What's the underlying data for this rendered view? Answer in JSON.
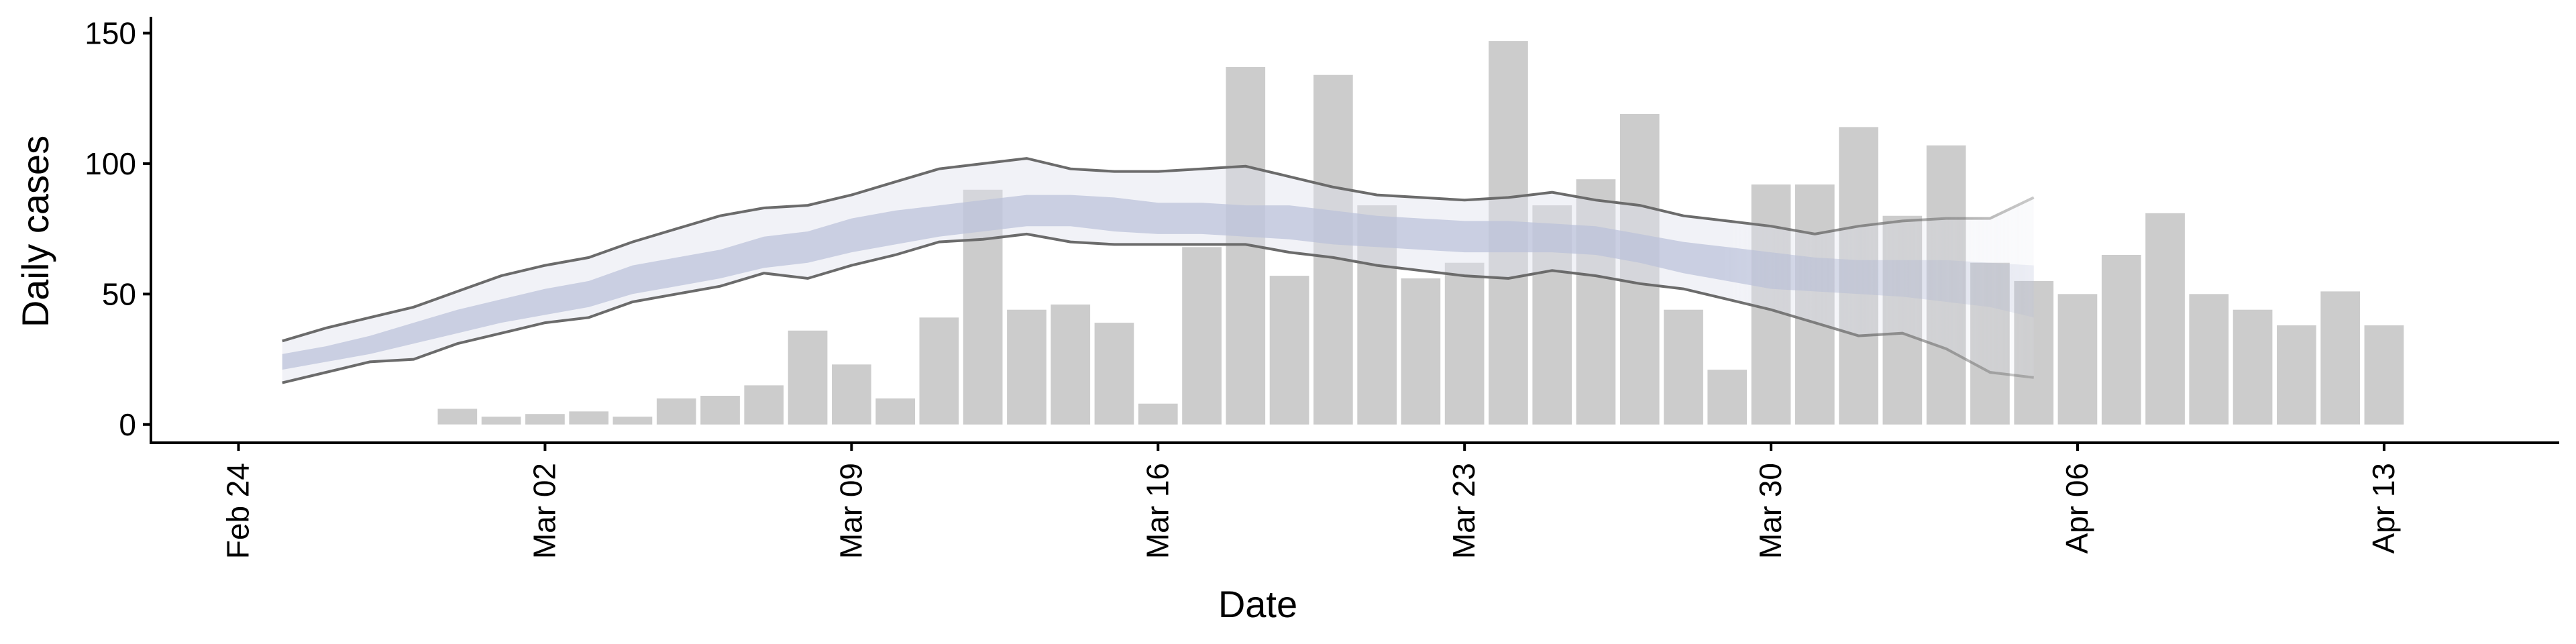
{
  "chart_data": {
    "type": "bar",
    "xlabel": "Date",
    "ylabel": "Daily cases",
    "ylim": [
      -7,
      155
    ],
    "xlim": [
      "2020-02-22",
      "2020-04-17"
    ],
    "yticks": [
      0,
      50,
      100,
      150
    ],
    "xticks": [
      {
        "date": "2020-02-24",
        "label": "Feb 24"
      },
      {
        "date": "2020-03-02",
        "label": "Mar 02"
      },
      {
        "date": "2020-03-09",
        "label": "Mar 09"
      },
      {
        "date": "2020-03-16",
        "label": "Mar 16"
      },
      {
        "date": "2020-03-23",
        "label": "Mar 23"
      },
      {
        "date": "2020-03-30",
        "label": "Mar 30"
      },
      {
        "date": "2020-04-06",
        "label": "Apr 06"
      },
      {
        "date": "2020-04-13",
        "label": "Apr 13"
      }
    ],
    "grid": false,
    "colors": {
      "bars": "#cccccc",
      "ribbon_outer": "#dfe2ee",
      "ribbon_inner": "#b9c0d8",
      "bound_lines": "#6b6b6b"
    },
    "bars": {
      "dates": [
        "2020-02-29",
        "2020-03-01",
        "2020-03-02",
        "2020-03-03",
        "2020-03-04",
        "2020-03-05",
        "2020-03-06",
        "2020-03-07",
        "2020-03-08",
        "2020-03-09",
        "2020-03-10",
        "2020-03-11",
        "2020-03-12",
        "2020-03-13",
        "2020-03-14",
        "2020-03-15",
        "2020-03-16",
        "2020-03-17",
        "2020-03-18",
        "2020-03-19",
        "2020-03-20",
        "2020-03-21",
        "2020-03-22",
        "2020-03-23",
        "2020-03-24",
        "2020-03-25",
        "2020-03-26",
        "2020-03-27",
        "2020-03-28",
        "2020-03-29",
        "2020-03-30",
        "2020-03-31",
        "2020-04-01",
        "2020-04-02",
        "2020-04-03",
        "2020-04-04",
        "2020-04-05",
        "2020-04-06",
        "2020-04-07",
        "2020-04-08",
        "2020-04-09",
        "2020-04-10",
        "2020-04-11",
        "2020-04-12",
        "2020-04-13",
        "2020-04-14"
      ],
      "values": [
        6,
        3,
        4,
        5,
        3,
        10,
        11,
        15,
        36,
        23,
        10,
        41,
        90,
        44,
        46,
        39,
        8,
        68,
        137,
        57,
        134,
        84,
        56,
        62,
        147,
        84,
        94,
        119,
        44,
        21,
        92,
        92,
        114,
        80,
        107,
        62,
        55,
        50,
        65,
        81,
        50,
        44,
        38,
        51,
        38,
        0
      ]
    },
    "ribbon": {
      "dates": [
        "2020-02-25",
        "2020-02-26",
        "2020-02-27",
        "2020-02-28",
        "2020-02-29",
        "2020-03-01",
        "2020-03-02",
        "2020-03-03",
        "2020-03-04",
        "2020-03-05",
        "2020-03-06",
        "2020-03-07",
        "2020-03-08",
        "2020-03-09",
        "2020-03-10",
        "2020-03-11",
        "2020-03-12",
        "2020-03-13",
        "2020-03-14",
        "2020-03-15",
        "2020-03-16",
        "2020-03-17",
        "2020-03-18",
        "2020-03-19",
        "2020-03-20",
        "2020-03-21",
        "2020-03-22",
        "2020-03-23",
        "2020-03-24",
        "2020-03-25",
        "2020-03-26",
        "2020-03-27",
        "2020-03-28",
        "2020-03-29",
        "2020-03-30",
        "2020-03-31",
        "2020-04-01",
        "2020-04-02",
        "2020-04-03",
        "2020-04-04",
        "2020-04-05"
      ],
      "upper": [
        32,
        37,
        41,
        45,
        51,
        57,
        61,
        64,
        70,
        75,
        80,
        83,
        84,
        88,
        93,
        98,
        100,
        102,
        98,
        97,
        97,
        98,
        99,
        95,
        91,
        88,
        87,
        86,
        87,
        89,
        86,
        84,
        80,
        78,
        76,
        73,
        76,
        78,
        79,
        79,
        87
      ],
      "upper_inner": [
        27,
        30,
        34,
        39,
        44,
        48,
        52,
        55,
        61,
        64,
        67,
        72,
        74,
        79,
        82,
        84,
        86,
        88,
        88,
        87,
        85,
        85,
        84,
        84,
        82,
        80,
        79,
        78,
        78,
        77,
        76,
        73,
        70,
        68,
        66,
        64,
        63,
        63,
        63,
        62,
        61
      ],
      "lower_inner": [
        21,
        24,
        27,
        31,
        35,
        39,
        42,
        45,
        50,
        53,
        56,
        60,
        62,
        66,
        69,
        72,
        74,
        76,
        76,
        74,
        73,
        73,
        72,
        71,
        69,
        68,
        67,
        66,
        66,
        66,
        65,
        62,
        58,
        55,
        52,
        51,
        50,
        49,
        47,
        45,
        41
      ],
      "lower": [
        16,
        20,
        24,
        25,
        31,
        35,
        39,
        41,
        47,
        50,
        53,
        58,
        56,
        61,
        65,
        70,
        71,
        73,
        70,
        69,
        69,
        69,
        69,
        66,
        64,
        61,
        59,
        57,
        56,
        59,
        57,
        54,
        52,
        48,
        44,
        39,
        34,
        35,
        29,
        20,
        18
      ]
    }
  }
}
